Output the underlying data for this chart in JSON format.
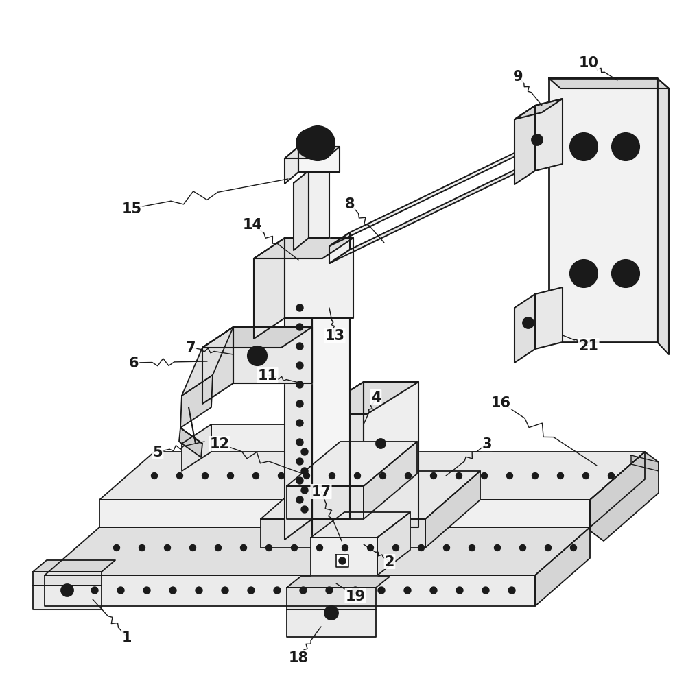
{
  "background_color": "#ffffff",
  "line_color": "#1a1a1a",
  "figure_width": 10.0,
  "figure_height": 9.87,
  "dpi": 100
}
